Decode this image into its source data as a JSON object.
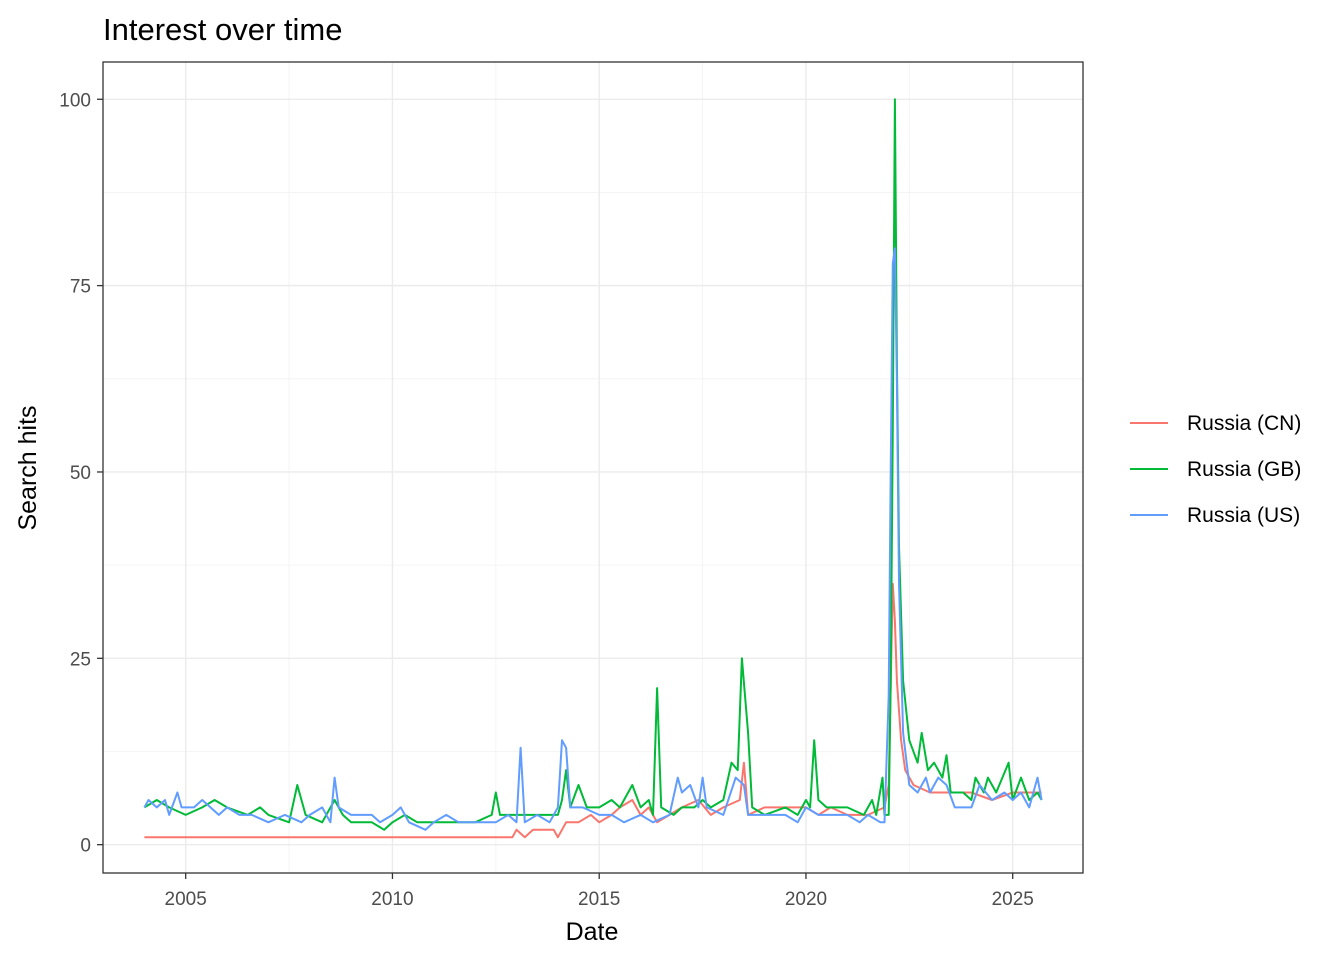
{
  "chart_data": {
    "type": "line",
    "title": "Interest over time",
    "xlabel": "Date",
    "ylabel": "Search hits",
    "xlim": [
      2003.0,
      2026.7
    ],
    "ylim": [
      -3.8,
      105
    ],
    "x_ticks": [
      2005,
      2010,
      2015,
      2020,
      2025
    ],
    "y_ticks": [
      0,
      25,
      50,
      75,
      100
    ],
    "grid": true,
    "legend_position": "right",
    "series": [
      {
        "name": "Russia (CN)",
        "color": "#F8766D",
        "points": [
          [
            2004.0,
            1
          ],
          [
            2012.9,
            1
          ],
          [
            2013.0,
            2
          ],
          [
            2013.2,
            1
          ],
          [
            2013.4,
            2
          ],
          [
            2013.9,
            2
          ],
          [
            2014.0,
            1
          ],
          [
            2014.2,
            3
          ],
          [
            2014.5,
            3
          ],
          [
            2014.8,
            4
          ],
          [
            2015.0,
            3
          ],
          [
            2015.3,
            4
          ],
          [
            2015.5,
            5
          ],
          [
            2015.8,
            6
          ],
          [
            2016.0,
            4
          ],
          [
            2016.2,
            5
          ],
          [
            2016.4,
            3
          ],
          [
            2016.7,
            4
          ],
          [
            2017.0,
            5
          ],
          [
            2017.4,
            6
          ],
          [
            2017.7,
            4
          ],
          [
            2018.0,
            5
          ],
          [
            2018.4,
            6
          ],
          [
            2018.5,
            11
          ],
          [
            2018.6,
            4
          ],
          [
            2019.0,
            5
          ],
          [
            2019.5,
            5
          ],
          [
            2020.0,
            5
          ],
          [
            2020.3,
            4
          ],
          [
            2020.6,
            5
          ],
          [
            2021.0,
            4
          ],
          [
            2021.5,
            4
          ],
          [
            2021.9,
            5
          ],
          [
            2022.0,
            8
          ],
          [
            2022.1,
            35
          ],
          [
            2022.15,
            30
          ],
          [
            2022.2,
            22
          ],
          [
            2022.3,
            14
          ],
          [
            2022.4,
            10
          ],
          [
            2022.6,
            8
          ],
          [
            2023.0,
            7
          ],
          [
            2023.5,
            7
          ],
          [
            2024.0,
            7
          ],
          [
            2024.5,
            6
          ],
          [
            2025.0,
            7
          ],
          [
            2025.4,
            7
          ],
          [
            2025.7,
            7
          ]
        ]
      },
      {
        "name": "Russia (GB)",
        "color": "#00BA38",
        "points": [
          [
            2004.0,
            5
          ],
          [
            2004.3,
            6
          ],
          [
            2004.6,
            5
          ],
          [
            2005.0,
            4
          ],
          [
            2005.4,
            5
          ],
          [
            2005.7,
            6
          ],
          [
            2006.0,
            5
          ],
          [
            2006.5,
            4
          ],
          [
            2006.8,
            5
          ],
          [
            2007.0,
            4
          ],
          [
            2007.5,
            3
          ],
          [
            2007.7,
            8
          ],
          [
            2007.9,
            4
          ],
          [
            2008.3,
            3
          ],
          [
            2008.6,
            6
          ],
          [
            2008.8,
            4
          ],
          [
            2009.0,
            3
          ],
          [
            2009.5,
            3
          ],
          [
            2009.8,
            2
          ],
          [
            2010.0,
            3
          ],
          [
            2010.3,
            4
          ],
          [
            2010.6,
            3
          ],
          [
            2011.0,
            3
          ],
          [
            2011.5,
            3
          ],
          [
            2012.0,
            3
          ],
          [
            2012.4,
            4
          ],
          [
            2012.5,
            7
          ],
          [
            2012.6,
            4
          ],
          [
            2013.0,
            4
          ],
          [
            2013.5,
            4
          ],
          [
            2014.0,
            4
          ],
          [
            2014.1,
            6
          ],
          [
            2014.2,
            10
          ],
          [
            2014.3,
            5
          ],
          [
            2014.5,
            8
          ],
          [
            2014.7,
            5
          ],
          [
            2015.0,
            5
          ],
          [
            2015.3,
            6
          ],
          [
            2015.5,
            5
          ],
          [
            2015.8,
            8
          ],
          [
            2016.0,
            5
          ],
          [
            2016.2,
            6
          ],
          [
            2016.3,
            4
          ],
          [
            2016.4,
            21
          ],
          [
            2016.5,
            5
          ],
          [
            2016.8,
            4
          ],
          [
            2017.0,
            5
          ],
          [
            2017.3,
            5
          ],
          [
            2017.5,
            6
          ],
          [
            2017.7,
            5
          ],
          [
            2018.0,
            6
          ],
          [
            2018.2,
            11
          ],
          [
            2018.35,
            10
          ],
          [
            2018.45,
            25
          ],
          [
            2018.6,
            15
          ],
          [
            2018.7,
            5
          ],
          [
            2019.0,
            4
          ],
          [
            2019.5,
            5
          ],
          [
            2019.8,
            4
          ],
          [
            2020.0,
            6
          ],
          [
            2020.1,
            5
          ],
          [
            2020.2,
            14
          ],
          [
            2020.3,
            6
          ],
          [
            2020.5,
            5
          ],
          [
            2021.0,
            5
          ],
          [
            2021.4,
            4
          ],
          [
            2021.6,
            6
          ],
          [
            2021.7,
            4
          ],
          [
            2021.85,
            9
          ],
          [
            2021.9,
            4
          ],
          [
            2022.0,
            4
          ],
          [
            2022.05,
            22
          ],
          [
            2022.1,
            56
          ],
          [
            2022.15,
            100
          ],
          [
            2022.2,
            65
          ],
          [
            2022.25,
            40
          ],
          [
            2022.35,
            22
          ],
          [
            2022.5,
            14
          ],
          [
            2022.7,
            11
          ],
          [
            2022.8,
            15
          ],
          [
            2022.95,
            10
          ],
          [
            2023.1,
            11
          ],
          [
            2023.3,
            9
          ],
          [
            2023.4,
            12
          ],
          [
            2023.5,
            7
          ],
          [
            2023.8,
            7
          ],
          [
            2024.0,
            6
          ],
          [
            2024.1,
            9
          ],
          [
            2024.3,
            7
          ],
          [
            2024.4,
            9
          ],
          [
            2024.6,
            7
          ],
          [
            2024.9,
            11
          ],
          [
            2025.0,
            6
          ],
          [
            2025.2,
            9
          ],
          [
            2025.4,
            6
          ],
          [
            2025.6,
            7
          ],
          [
            2025.7,
            6
          ]
        ]
      },
      {
        "name": "Russia (US)",
        "color": "#619CFF",
        "points": [
          [
            2004.0,
            5
          ],
          [
            2004.1,
            6
          ],
          [
            2004.3,
            5
          ],
          [
            2004.5,
            6
          ],
          [
            2004.6,
            4
          ],
          [
            2004.8,
            7
          ],
          [
            2004.9,
            5
          ],
          [
            2005.2,
            5
          ],
          [
            2005.4,
            6
          ],
          [
            2005.6,
            5
          ],
          [
            2005.8,
            4
          ],
          [
            2006.0,
            5
          ],
          [
            2006.3,
            4
          ],
          [
            2006.6,
            4
          ],
          [
            2007.0,
            3
          ],
          [
            2007.4,
            4
          ],
          [
            2007.8,
            3
          ],
          [
            2008.0,
            4
          ],
          [
            2008.3,
            5
          ],
          [
            2008.5,
            3
          ],
          [
            2008.6,
            9
          ],
          [
            2008.7,
            5
          ],
          [
            2009.0,
            4
          ],
          [
            2009.5,
            4
          ],
          [
            2009.7,
            3
          ],
          [
            2010.0,
            4
          ],
          [
            2010.2,
            5
          ],
          [
            2010.4,
            3
          ],
          [
            2010.8,
            2
          ],
          [
            2011.0,
            3
          ],
          [
            2011.3,
            4
          ],
          [
            2011.6,
            3
          ],
          [
            2012.0,
            3
          ],
          [
            2012.5,
            3
          ],
          [
            2012.8,
            4
          ],
          [
            2013.0,
            3
          ],
          [
            2013.1,
            13
          ],
          [
            2013.2,
            3
          ],
          [
            2013.5,
            4
          ],
          [
            2013.8,
            3
          ],
          [
            2014.0,
            5
          ],
          [
            2014.1,
            14
          ],
          [
            2014.2,
            13
          ],
          [
            2014.3,
            5
          ],
          [
            2014.6,
            5
          ],
          [
            2015.0,
            4
          ],
          [
            2015.3,
            4
          ],
          [
            2015.6,
            3
          ],
          [
            2016.0,
            4
          ],
          [
            2016.3,
            3
          ],
          [
            2016.7,
            4
          ],
          [
            2016.9,
            9
          ],
          [
            2017.0,
            7
          ],
          [
            2017.2,
            8
          ],
          [
            2017.4,
            5
          ],
          [
            2017.5,
            9
          ],
          [
            2017.6,
            5
          ],
          [
            2018.0,
            4
          ],
          [
            2018.3,
            9
          ],
          [
            2018.5,
            8
          ],
          [
            2018.6,
            4
          ],
          [
            2019.0,
            4
          ],
          [
            2019.5,
            4
          ],
          [
            2019.8,
            3
          ],
          [
            2020.0,
            5
          ],
          [
            2020.3,
            4
          ],
          [
            2020.6,
            4
          ],
          [
            2021.0,
            4
          ],
          [
            2021.3,
            3
          ],
          [
            2021.5,
            4
          ],
          [
            2021.8,
            3
          ],
          [
            2021.9,
            3
          ],
          [
            2022.0,
            20
          ],
          [
            2022.05,
            50
          ],
          [
            2022.1,
            78
          ],
          [
            2022.15,
            80
          ],
          [
            2022.2,
            62
          ],
          [
            2022.25,
            35
          ],
          [
            2022.35,
            15
          ],
          [
            2022.5,
            8
          ],
          [
            2022.7,
            7
          ],
          [
            2022.9,
            9
          ],
          [
            2023.0,
            7
          ],
          [
            2023.2,
            9
          ],
          [
            2023.4,
            8
          ],
          [
            2023.6,
            5
          ],
          [
            2024.0,
            5
          ],
          [
            2024.2,
            8
          ],
          [
            2024.5,
            6
          ],
          [
            2024.8,
            7
          ],
          [
            2025.0,
            6
          ],
          [
            2025.2,
            7
          ],
          [
            2025.4,
            5
          ],
          [
            2025.6,
            9
          ],
          [
            2025.7,
            6
          ]
        ]
      }
    ]
  }
}
